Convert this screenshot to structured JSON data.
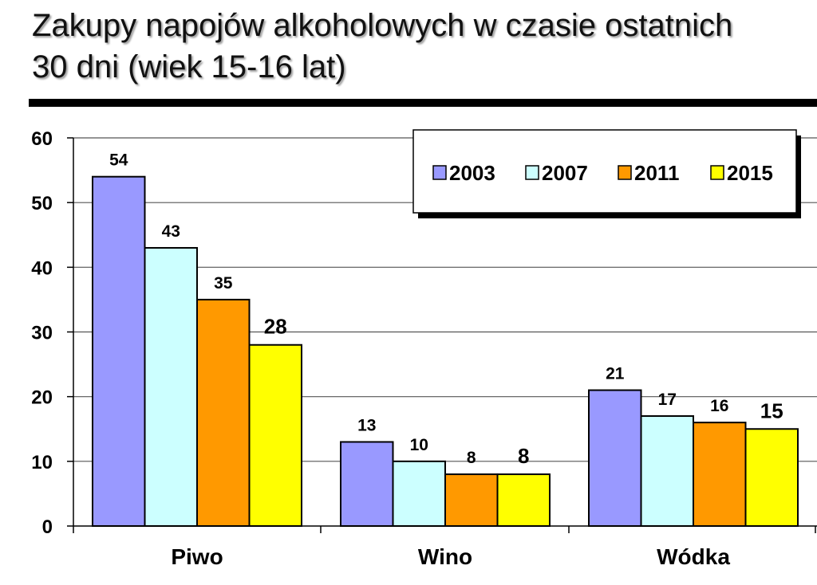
{
  "header": {
    "title_line1": "Zakupy napojów alkoholowych w czasie ostatnich",
    "title_line2": "30 dni (wiek 15-16 lat)"
  },
  "chart_data": {
    "type": "bar",
    "title": "Zakupy napojów alkoholowych w czasie ostatnich 30 dni (wiek 15-16 lat)",
    "categories": [
      "Piwo",
      "Wino",
      "Wódka"
    ],
    "series": [
      {
        "name": "2003",
        "values": [
          54,
          13,
          21
        ],
        "color": "#9999ff",
        "data_labels": [
          "54",
          "13",
          "21"
        ]
      },
      {
        "name": "2007",
        "values": [
          43,
          10,
          17
        ],
        "color": "#ccffff",
        "data_labels": [
          "43",
          "10",
          "17"
        ]
      },
      {
        "name": "2011",
        "values": [
          35,
          8,
          16
        ],
        "color": "#ff9900",
        "data_labels": [
          "35",
          "8",
          "16"
        ]
      },
      {
        "name": "2015",
        "values": [
          28,
          8,
          15
        ],
        "color": "#ffff00",
        "data_labels": [
          "28",
          "8",
          "15"
        ]
      }
    ],
    "ylim": [
      0,
      60
    ],
    "yticks": [
      0,
      10,
      20,
      30,
      40,
      50,
      60
    ],
    "ytick_labels": [
      "0",
      "10",
      "20",
      "30",
      "40",
      "50",
      "60"
    ],
    "grid": true,
    "legend": "top-right",
    "xlabel": "",
    "ylabel": ""
  }
}
